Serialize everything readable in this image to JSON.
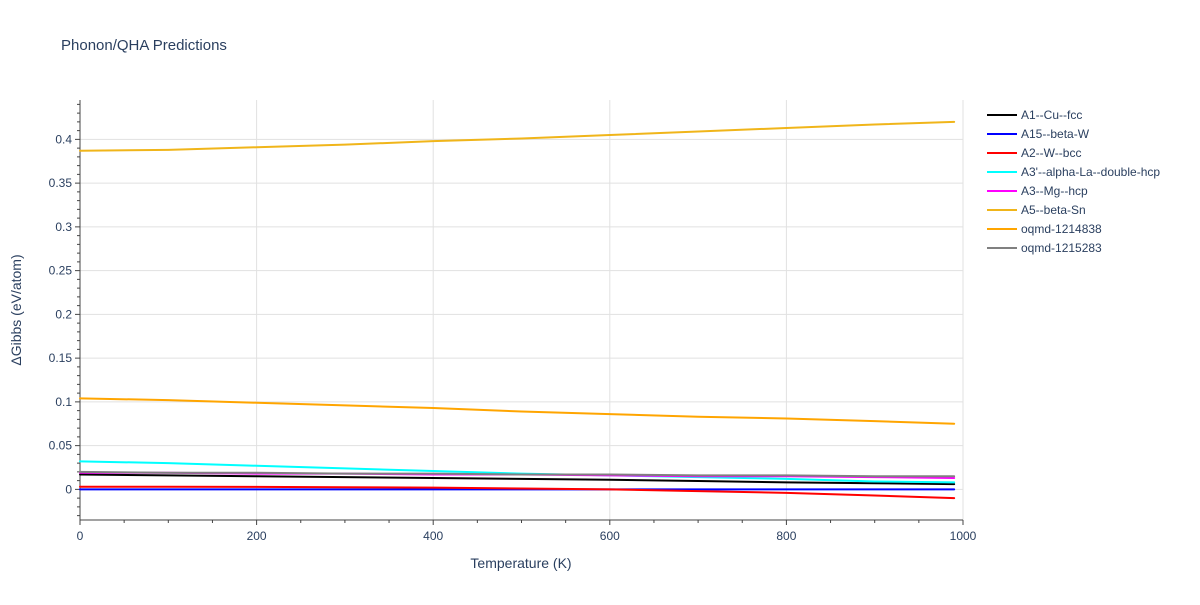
{
  "chart_data": {
    "type": "line",
    "title": "Phonon/QHA Predictions",
    "xlabel": "Temperature (K)",
    "ylabel": "ΔGibbs (eV/atom)",
    "xlim": [
      0,
      1000
    ],
    "ylim": [
      -0.035,
      0.445
    ],
    "x_ticks": [
      0,
      200,
      400,
      600,
      800,
      1000
    ],
    "y_ticks": [
      0,
      0.05,
      0.1,
      0.15,
      0.2,
      0.25,
      0.3,
      0.35,
      0.4
    ],
    "x_tick_labels": [
      "0",
      "200",
      "400",
      "600",
      "800",
      "1000"
    ],
    "y_tick_labels": [
      "0",
      "0.05",
      "0.1",
      "0.15",
      "0.2",
      "0.25",
      "0.3",
      "0.35",
      "0.4"
    ],
    "grid": true,
    "legend_position": "right",
    "series": [
      {
        "name": "A1--Cu--fcc",
        "color": "#000000",
        "x": [
          0,
          100,
          200,
          300,
          400,
          500,
          600,
          700,
          800,
          900,
          990
        ],
        "y": [
          0.017,
          0.016,
          0.015,
          0.014,
          0.013,
          0.012,
          0.011,
          0.0095,
          0.008,
          0.007,
          0.006
        ]
      },
      {
        "name": "A15--beta-W",
        "color": "#0000ff",
        "x": [
          0,
          200,
          400,
          600,
          800,
          990
        ],
        "y": [
          0.0,
          0.0,
          0.0,
          0.0,
          0.0,
          0.0
        ]
      },
      {
        "name": "A2--W--bcc",
        "color": "#ff0000",
        "x": [
          0,
          100,
          200,
          300,
          400,
          500,
          600,
          700,
          800,
          900,
          990
        ],
        "y": [
          0.003,
          0.003,
          0.0028,
          0.0025,
          0.002,
          0.001,
          0.0,
          -0.002,
          -0.004,
          -0.007,
          -0.01
        ]
      },
      {
        "name": "A3'--alpha-La--double-hcp",
        "color": "#00ffff",
        "x": [
          0,
          100,
          200,
          300,
          400,
          500,
          600,
          700,
          800,
          900,
          990
        ],
        "y": [
          0.032,
          0.03,
          0.027,
          0.024,
          0.021,
          0.018,
          0.016,
          0.014,
          0.012,
          0.009,
          0.008
        ]
      },
      {
        "name": "A3--Mg--hcp",
        "color": "#ff00ff",
        "x": [
          0,
          100,
          200,
          300,
          400,
          500,
          600,
          700,
          800,
          900,
          990
        ],
        "y": [
          0.019,
          0.019,
          0.018,
          0.018,
          0.017,
          0.017,
          0.016,
          0.015,
          0.015,
          0.014,
          0.013
        ]
      },
      {
        "name": "A5--beta-Sn",
        "color": "#f0b51a",
        "x": [
          0,
          100,
          200,
          300,
          400,
          500,
          600,
          700,
          800,
          900,
          990
        ],
        "y": [
          0.387,
          0.388,
          0.391,
          0.394,
          0.398,
          0.401,
          0.405,
          0.409,
          0.413,
          0.417,
          0.42
        ]
      },
      {
        "name": "oqmd-1214838",
        "color": "#ffa500",
        "x": [
          0,
          100,
          200,
          300,
          400,
          500,
          600,
          700,
          800,
          900,
          990
        ],
        "y": [
          0.104,
          0.102,
          0.099,
          0.096,
          0.093,
          0.089,
          0.086,
          0.083,
          0.081,
          0.078,
          0.075
        ]
      },
      {
        "name": "oqmd-1215283",
        "color": "#808080",
        "x": [
          0,
          100,
          200,
          300,
          400,
          500,
          600,
          700,
          800,
          900,
          990
        ],
        "y": [
          0.02,
          0.019,
          0.019,
          0.018,
          0.018,
          0.017,
          0.017,
          0.016,
          0.016,
          0.015,
          0.015
        ]
      }
    ]
  }
}
